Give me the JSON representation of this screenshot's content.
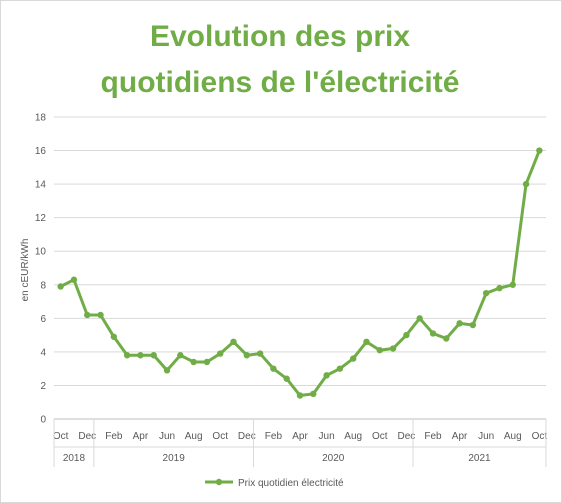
{
  "chart_data": {
    "type": "line",
    "title_line1": "Evolution des prix",
    "title_line2": "quotidiens de l'électricité",
    "ylabel": "en cEUR/kWh",
    "xlabel": "",
    "ylim": [
      0,
      18
    ],
    "yticks": [
      0,
      2,
      4,
      6,
      8,
      10,
      12,
      14,
      16,
      18
    ],
    "grid": "horizontal",
    "legend_position": "bottom",
    "line_color": "#70ad47",
    "x": [
      "Oct 2018",
      "Nov 2018",
      "Dec 2018",
      "Jan 2019",
      "Feb 2019",
      "Mar 2019",
      "Apr 2019",
      "May 2019",
      "Jun 2019",
      "Jul 2019",
      "Aug 2019",
      "Sep 2019",
      "Oct 2019",
      "Nov 2019",
      "Dec 2019",
      "Jan 2020",
      "Feb 2020",
      "Mar 2020",
      "Apr 2020",
      "May 2020",
      "Jun 2020",
      "Jul 2020",
      "Aug 2020",
      "Sep 2020",
      "Oct 2020",
      "Nov 2020",
      "Dec 2020",
      "Jan 2021",
      "Feb 2021",
      "Mar 2021",
      "Apr 2021",
      "May 2021",
      "Jun 2021",
      "Jul 2021",
      "Aug 2021",
      "Sep 2021",
      "Oct 2021"
    ],
    "tick_labels": [
      "Oct",
      "",
      "Dec",
      "",
      "Feb",
      "",
      "Apr",
      "",
      "Jun",
      "",
      "Aug",
      "",
      "Oct",
      "",
      "Dec",
      "",
      "Feb",
      "",
      "Apr",
      "",
      "Jun",
      "",
      "Aug",
      "",
      "Oct",
      "",
      "Dec",
      "",
      "Feb",
      "",
      "Apr",
      "",
      "Jun",
      "",
      "Aug",
      "",
      "Oct"
    ],
    "years": [
      {
        "label": "2018",
        "start": 0,
        "end": 2
      },
      {
        "label": "2019",
        "start": 3,
        "end": 14
      },
      {
        "label": "2020",
        "start": 15,
        "end": 26
      },
      {
        "label": "2021",
        "start": 27,
        "end": 36
      }
    ],
    "series": [
      {
        "name": "Prix quotidien électricité",
        "values": [
          7.9,
          8.3,
          6.2,
          6.2,
          4.9,
          3.8,
          3.8,
          3.8,
          2.9,
          3.8,
          3.4,
          3.4,
          3.9,
          4.6,
          3.8,
          3.9,
          3.0,
          2.4,
          1.4,
          1.5,
          2.6,
          3.0,
          3.6,
          4.6,
          4.1,
          4.2,
          5.0,
          6.0,
          5.1,
          4.8,
          5.7,
          5.6,
          7.5,
          7.8,
          8.0,
          14.0,
          16.0
        ]
      }
    ]
  }
}
